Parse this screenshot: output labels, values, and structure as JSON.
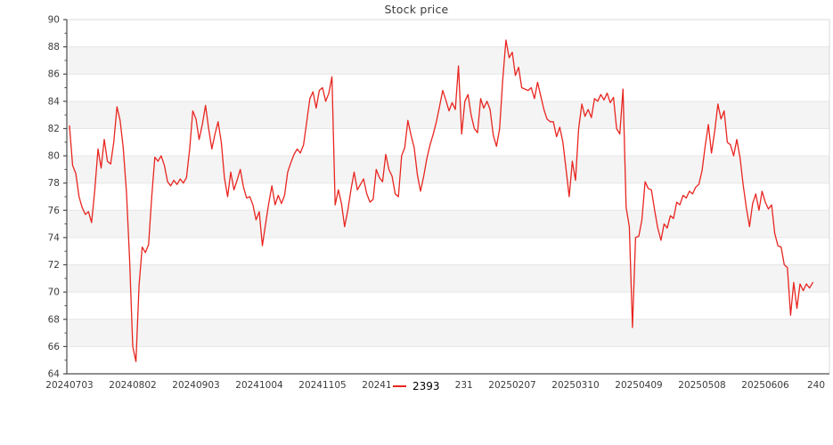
{
  "title": "Stock price",
  "legend": {
    "label": "2393"
  },
  "colors": {
    "line": "#e8251f",
    "band": "#f4f4f4",
    "grid": "#e6e6e6",
    "spine_dark": "#4d4d4d",
    "spine_light": "#d9d9d9",
    "tick_label": "#3c3c3c",
    "title": "#3a3a3a",
    "legend_label": "#000000",
    "background": "#ffffff"
  },
  "chart_data": {
    "type": "line",
    "title": "Stock price",
    "xlabel": "",
    "ylabel": "",
    "ylim": [
      64,
      90
    ],
    "y_major_ticks": [
      64,
      66,
      68,
      70,
      72,
      74,
      76,
      78,
      80,
      82,
      84,
      86,
      88,
      90
    ],
    "y_minor_tick_step": 1,
    "x_index_max": 240,
    "x_tick_interval": 20,
    "x_tick_labels": [
      "20240703",
      "20240802",
      "20240903",
      "20241004",
      "20241105",
      "20241203",
      "20241231",
      "20250207",
      "20250310",
      "20250409",
      "20250508",
      "20250606",
      "240"
    ],
    "grid": "horizontal-bands-every-2-units",
    "band_lower_edges": [
      66,
      70,
      74,
      78,
      82,
      86
    ],
    "legend_position": "lower center",
    "series": [
      {
        "name": "2393",
        "color": "#e8251f",
        "values": [
          82.2,
          79.3,
          78.7,
          77.0,
          76.2,
          75.7,
          75.9,
          75.1,
          77.5,
          80.5,
          79.1,
          81.2,
          79.6,
          79.4,
          81.0,
          83.6,
          82.6,
          80.6,
          77.4,
          72.5,
          66.0,
          64.9,
          70.5,
          73.3,
          72.9,
          73.5,
          77.0,
          79.9,
          79.6,
          80.0,
          79.3,
          78.1,
          77.8,
          78.2,
          77.9,
          78.3,
          78.0,
          78.4,
          80.5,
          83.3,
          82.7,
          81.2,
          82.3,
          83.7,
          82.0,
          80.5,
          81.6,
          82.5,
          81.0,
          78.4,
          77.0,
          78.8,
          77.5,
          78.2,
          79.0,
          77.7,
          76.9,
          77.0,
          76.4,
          75.3,
          75.9,
          73.4,
          75.0,
          76.5,
          77.8,
          76.4,
          77.1,
          76.5,
          77.1,
          78.8,
          79.5,
          80.1,
          80.5,
          80.2,
          80.8,
          82.5,
          84.2,
          84.7,
          83.5,
          84.8,
          85.0,
          84.0,
          84.6,
          85.8,
          76.4,
          77.5,
          76.5,
          74.8,
          76.0,
          77.5,
          78.8,
          77.5,
          77.9,
          78.3,
          77.2,
          76.6,
          76.8,
          79.0,
          78.4,
          78.1,
          80.1,
          79.0,
          78.5,
          77.2,
          77.0,
          80.0,
          80.6,
          82.6,
          81.5,
          80.6,
          78.6,
          77.4,
          78.5,
          79.8,
          80.8,
          81.6,
          82.5,
          83.6,
          84.8,
          84.1,
          83.3,
          83.9,
          83.4,
          86.6,
          81.6,
          84.0,
          84.5,
          83.0,
          82.0,
          81.7,
          84.2,
          83.5,
          84.0,
          83.4,
          81.5,
          80.7,
          82.0,
          85.6,
          88.5,
          87.2,
          87.6,
          85.9,
          86.5,
          85.0,
          84.9,
          84.8,
          85.0,
          84.2,
          85.4,
          84.4,
          83.4,
          82.7,
          82.5,
          82.5,
          81.4,
          82.1,
          81.0,
          79.0,
          77.0,
          79.6,
          78.2,
          82.0,
          83.8,
          82.9,
          83.4,
          82.8,
          84.2,
          84.0,
          84.5,
          84.1,
          84.6,
          83.9,
          84.3,
          82.0,
          81.6,
          84.9,
          76.2,
          74.8,
          67.4,
          74.0,
          74.1,
          75.3,
          78.1,
          77.6,
          77.5,
          76.0,
          74.7,
          73.8,
          75.0,
          74.7,
          75.6,
          75.4,
          76.6,
          76.4,
          77.1,
          76.9,
          77.4,
          77.2,
          77.7,
          77.9,
          78.9,
          80.7,
          82.3,
          80.2,
          81.8,
          83.8,
          82.7,
          83.3,
          81.0,
          80.8,
          80.0,
          81.2,
          79.9,
          77.9,
          76.2,
          74.8,
          76.5,
          77.2,
          76.0,
          77.4,
          76.6,
          76.1,
          76.4,
          74.3,
          73.4,
          73.3,
          72.0,
          71.8,
          68.3,
          70.7,
          68.8,
          70.6,
          70.1,
          70.6,
          70.3,
          70.7
        ]
      }
    ]
  }
}
